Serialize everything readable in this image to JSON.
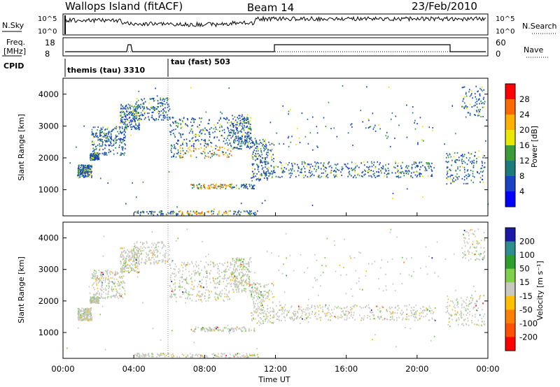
{
  "header": {
    "station": "Wallops Island (fitACF)",
    "beam": "Beam 14",
    "date": "23/Feb/2010"
  },
  "panels": {
    "nsky": {
      "label": "N.Sky",
      "ticks_left": [
        "10^5",
        "10^0"
      ],
      "right_label": "N.Search",
      "ticks_right": [
        "10^5",
        "10^0"
      ]
    },
    "freq": {
      "label_line1": "Freq.",
      "label_line2": "[MHz]",
      "ticks_left": [
        "18",
        "8"
      ],
      "right_label": "Nave",
      "ticks_right": [
        "60",
        "0"
      ]
    },
    "cpid": {
      "label": "CPID",
      "modes": [
        {
          "name": "themis (tau) 3310"
        },
        {
          "name": "tau (fast) 503"
        }
      ]
    }
  },
  "chart_data": [
    {
      "type": "heatmap",
      "title": "",
      "ylabel": "Slant Range [km]",
      "colorbar_label": "Power [dB]",
      "colorbar_ticks": [
        "28",
        "24",
        "20",
        "16",
        "12",
        "8",
        "4"
      ],
      "colors": [
        "#ff0000",
        "#ff6a00",
        "#ffb000",
        "#e8e800",
        "#3c9c3c",
        "#1c7c7c",
        "#1a44c4",
        "#0000ff"
      ],
      "ylim": [
        180,
        4500
      ],
      "yticks": [
        "4000",
        "3000",
        "2000",
        "1000"
      ]
    },
    {
      "type": "heatmap",
      "title": "",
      "ylabel": "Velocity [m s⁻¹]",
      "ylabel_range": "Slant Range [km]",
      "colorbar_ticks": [
        "200",
        "100",
        "50",
        "15",
        "-15",
        "-50",
        "-100",
        "-200"
      ],
      "colors": [
        "#1a1aa8",
        "#2e8e8e",
        "#2e9e2e",
        "#7ed04a",
        "#c8c8c0",
        "#ffc000",
        "#ff8000",
        "#ff5000",
        "#ff0000"
      ],
      "ylim": [
        180,
        4500
      ],
      "yticks": [
        "4000",
        "3000",
        "2000",
        "1000"
      ]
    }
  ],
  "xaxis": {
    "label": "Time UT",
    "ticks": [
      "00:00",
      "04:00",
      "08:00",
      "12:00",
      "16:00",
      "20:00",
      "00:00"
    ],
    "xlim_hours": [
      0,
      24
    ]
  }
}
